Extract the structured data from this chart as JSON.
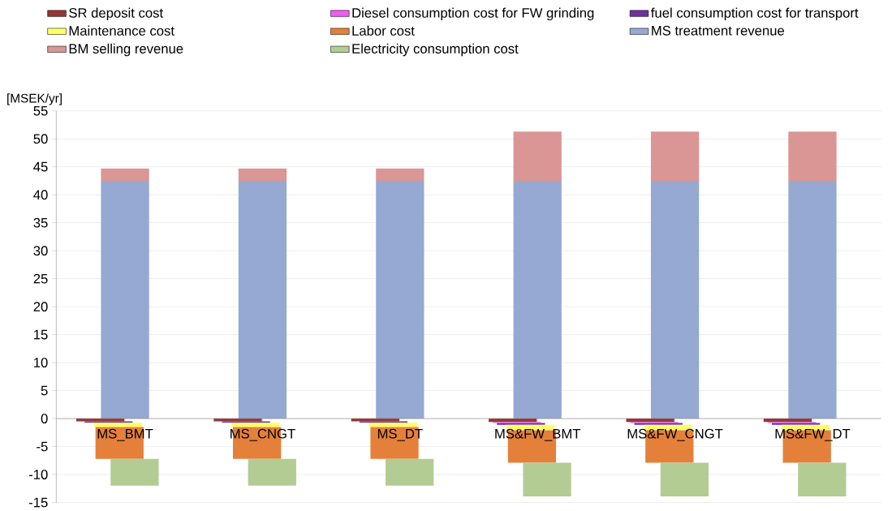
{
  "chart_data": {
    "type": "bar",
    "stacked": true,
    "ylabel": "[MSEK/yr]",
    "categories": [
      "MS_BMT",
      "MS_CNGT",
      "MS_DT",
      "MS&FW_BMT",
      "MS&FW_CNGT",
      "MS&FW_DT"
    ],
    "series": [
      {
        "name": "SR deposit cost",
        "color": "#953735",
        "values": [
          -0.5,
          -0.5,
          -0.5,
          -0.6,
          -0.6,
          -0.6
        ]
      },
      {
        "name": "Diesel consumption cost for FW grinding",
        "color": "#f05cf0",
        "values": [
          0,
          0,
          0,
          -0.2,
          -0.2,
          -0.2
        ]
      },
      {
        "name": "fuel consumption cost for transport",
        "color": "#7030a0",
        "values": [
          -0.2,
          -0.2,
          -0.2,
          -0.3,
          -0.3,
          -0.3
        ]
      },
      {
        "name": "Maintenance cost",
        "color": "#ffff66",
        "values": [
          -0.8,
          -0.8,
          -0.8,
          -1.0,
          -1.0,
          -1.0
        ]
      },
      {
        "name": "Labor cost",
        "color": "#e5803a",
        "values": [
          -5.7,
          -5.7,
          -5.7,
          -5.8,
          -5.8,
          -5.8
        ]
      },
      {
        "name": "MS treatment revenue",
        "color": "#95a9d2",
        "values": [
          42.5,
          42.5,
          42.5,
          42.5,
          42.5,
          42.5
        ]
      },
      {
        "name": "BM selling revenue",
        "color": "#d99694",
        "values": [
          2.2,
          2.2,
          2.2,
          8.8,
          8.8,
          8.8
        ]
      },
      {
        "name": "Electricity consumption cost",
        "color": "#b3cc93",
        "values": [
          -4.8,
          -4.8,
          -4.8,
          -6.0,
          -6.0,
          -6.0
        ]
      }
    ],
    "ylim": [
      -15,
      55
    ],
    "yticks": [
      -15,
      -10,
      -5,
      0,
      5,
      10,
      15,
      20,
      25,
      30,
      35,
      40,
      45,
      50,
      55
    ],
    "grid": "y",
    "legend": "top"
  }
}
